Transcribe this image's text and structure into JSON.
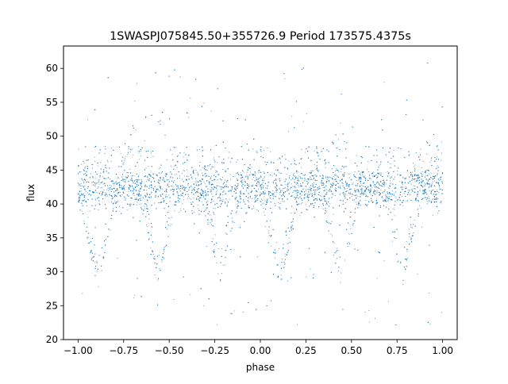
{
  "chart_data": {
    "type": "scatter",
    "title": "1SWASPJ075845.50+355726.9 Period 173575.4375s",
    "xlabel": "phase",
    "ylabel": "flux",
    "xlim": [
      -1.08,
      1.08
    ],
    "ylim": [
      20,
      63.3
    ],
    "x_ticks": [
      -1.0,
      -0.75,
      -0.5,
      -0.25,
      0.0,
      0.25,
      0.5,
      0.75,
      1.0
    ],
    "x_tick_labels": [
      "−1.00",
      "−0.75",
      "−0.50",
      "−0.25",
      "0.00",
      "0.25",
      "0.50",
      "0.75",
      "1.00"
    ],
    "y_ticks": [
      20,
      25,
      30,
      35,
      40,
      45,
      50,
      55,
      60
    ],
    "y_tick_labels": [
      "20",
      "25",
      "30",
      "35",
      "40",
      "45",
      "50",
      "55",
      "60"
    ],
    "grid": false,
    "legend": "none",
    "marker_color": "#1f77b4",
    "series": [
      {
        "description": "folded light curve, dense band of flux 38-47 across all phases",
        "baseline_flux": 42.5,
        "scatter_spread": 2.3,
        "eclipse_minima": [
          {
            "phase": -0.89,
            "min_flux": 28.2
          },
          {
            "phase": -0.56,
            "min_flux": 29.0
          },
          {
            "phase": -0.22,
            "min_flux": 29.0
          },
          {
            "phase": 0.11,
            "min_flux": 28.2
          },
          {
            "phase": 0.44,
            "min_flux": 29.0
          },
          {
            "phase": 0.78,
            "min_flux": 29.0
          }
        ],
        "brightening_bumps": [
          {
            "phase": -0.55,
            "max_flux": 52
          },
          {
            "phase": 0.45,
            "max_flux": 52
          },
          {
            "phase": -0.05,
            "max_flux": 49
          },
          {
            "phase": 0.95,
            "max_flux": 49
          }
        ],
        "outlier_range": [
          22,
          61
        ]
      }
    ]
  }
}
